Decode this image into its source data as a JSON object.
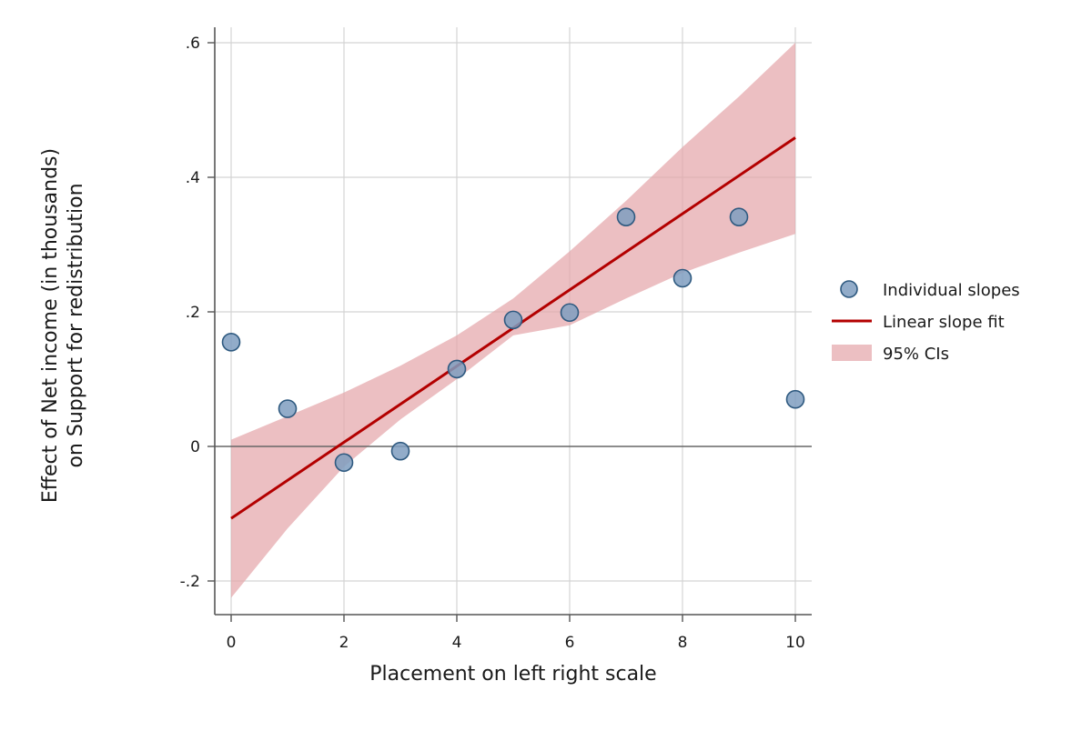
{
  "chart_data": {
    "type": "scatter",
    "xlabel": "Placement on left right scale",
    "ylabel_lines": [
      "Effect of Net income (in thousands)",
      "on Support for redistribution"
    ],
    "xlim": [
      0,
      10
    ],
    "ylim": [
      -0.25,
      0.6
    ],
    "x_ticks": [
      {
        "value": 0,
        "label": "0"
      },
      {
        "value": 2,
        "label": "2"
      },
      {
        "value": 4,
        "label": "4"
      },
      {
        "value": 6,
        "label": "6"
      },
      {
        "value": 8,
        "label": "8"
      },
      {
        "value": 10,
        "label": "10"
      }
    ],
    "y_ticks": [
      {
        "value": -0.2,
        "label": "-.2"
      },
      {
        "value": 0,
        "label": "0"
      },
      {
        "value": 0.2,
        "label": ".2"
      },
      {
        "value": 0.4,
        "label": ".4"
      },
      {
        "value": 0.6,
        "label": ".6"
      }
    ],
    "grid": true,
    "reference_line_y": 0,
    "series": [
      {
        "name": "Individual slopes",
        "kind": "points",
        "x": [
          0,
          1,
          2,
          3,
          4,
          5,
          6,
          7,
          8,
          9,
          10
        ],
        "y": [
          0.155,
          0.056,
          -0.024,
          -0.007,
          0.115,
          0.188,
          0.199,
          0.341,
          0.25,
          0.341,
          0.07
        ]
      },
      {
        "name": "Linear slope fit",
        "kind": "line",
        "x": [
          0,
          10
        ],
        "y": [
          -0.107,
          0.459
        ]
      },
      {
        "name": "95% CIs",
        "kind": "band",
        "x": [
          0,
          1,
          2,
          3,
          4,
          5,
          6,
          7,
          8,
          9,
          10
        ],
        "lower": [
          -0.225,
          -0.122,
          -0.03,
          0.04,
          0.1,
          0.165,
          0.18,
          0.22,
          0.258,
          0.288,
          0.316
        ],
        "upper": [
          0.01,
          0.045,
          0.08,
          0.12,
          0.165,
          0.22,
          0.29,
          0.365,
          0.445,
          0.52,
          0.6
        ]
      }
    ],
    "legend": {
      "placement": "right",
      "items": [
        {
          "label": "Individual slopes",
          "kind": "marker"
        },
        {
          "label": "Linear slope fit",
          "kind": "line"
        },
        {
          "label": "95% CIs",
          "kind": "band"
        }
      ]
    },
    "colors": {
      "marker_fill": "#7f9ec0",
      "marker_stroke": "#2f5a80",
      "fit_line": "#b30000",
      "ci_band": "#e4a6aa",
      "grid": "#d4d4d4",
      "axis": "#555555",
      "zero_line": "#666666"
    }
  }
}
